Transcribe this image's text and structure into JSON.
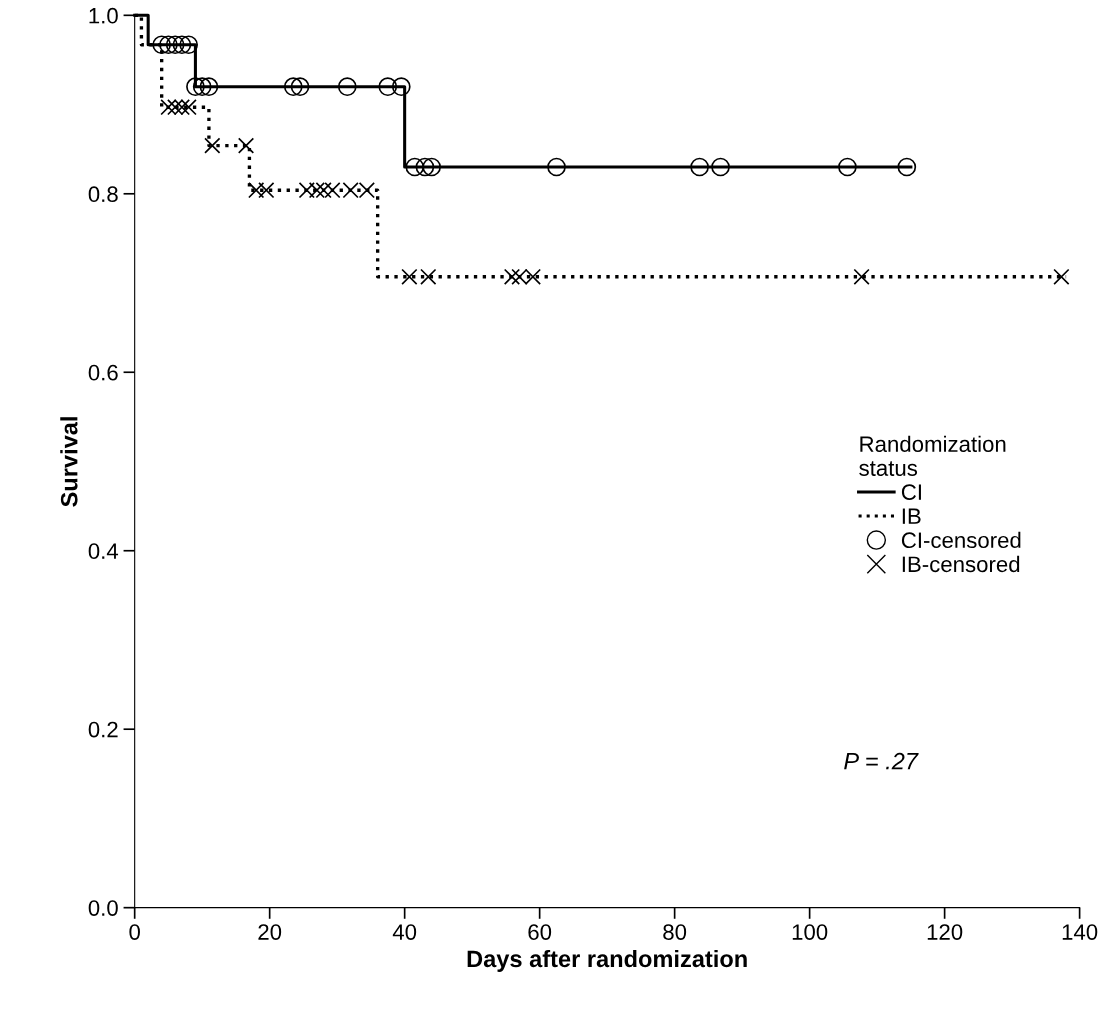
{
  "chart_data": {
    "type": "step",
    "xlabel": "Days after randomization",
    "ylabel": "Survival",
    "legend_title": "Randomization\nstatus",
    "legend": "right",
    "grid": false,
    "xlim": [
      0,
      140
    ],
    "xticks": [
      0,
      20,
      40,
      60,
      80,
      100,
      120,
      140
    ],
    "ylim": [
      0,
      1
    ],
    "yticks": [
      {
        "value": 0,
        "label": "0.0"
      },
      {
        "value": 0.2,
        "label": "0.2"
      },
      {
        "value": 0.4,
        "label": "0.4"
      },
      {
        "value": 0.6,
        "label": "0.6"
      },
      {
        "value": 0.8,
        "label": "0.8"
      },
      {
        "value": 1,
        "label": "1.0"
      }
    ],
    "series": [
      {
        "name": "CI",
        "color": "#000000",
        "line_style": "solid",
        "marker": "none",
        "x": [
          0,
          2,
          9,
          40,
          115
        ],
        "values": [
          1,
          0.967,
          0.92,
          0.83,
          0.83
        ]
      },
      {
        "name": "IB",
        "color": "#000000",
        "line_style": "dotted",
        "marker": "none",
        "x": [
          0,
          1,
          4,
          11,
          17,
          36,
          138
        ],
        "values": [
          1,
          0.967,
          0.897,
          0.854,
          0.804,
          0.707,
          0.707
        ]
      },
      {
        "name": "CI-censored",
        "type": "scatter",
        "color": "#000000",
        "marker": "circle",
        "x": [
          4,
          5,
          6,
          7,
          8,
          9,
          10,
          11,
          23.5,
          24.5,
          31.5,
          37.5,
          39.5,
          41.5,
          43,
          44,
          62.5,
          83.7,
          86.8,
          105.6,
          114.4
        ],
        "values": [
          0.967,
          0.967,
          0.967,
          0.967,
          0.967,
          0.92,
          0.92,
          0.92,
          0.92,
          0.92,
          0.92,
          0.92,
          0.92,
          0.83,
          0.83,
          0.83,
          0.83,
          0.83,
          0.83,
          0.83,
          0.83
        ]
      },
      {
        "name": "IB-censored",
        "type": "scatter",
        "color": "#000000",
        "marker": "cross",
        "x": [
          5,
          6,
          7,
          8,
          11.5,
          16.5,
          18,
          19.5,
          25.5,
          27,
          28,
          29.3,
          32,
          34.4,
          40.7,
          43.5,
          55.9,
          57,
          59,
          107.7,
          137.3
        ],
        "values": [
          0.897,
          0.897,
          0.897,
          0.897,
          0.854,
          0.854,
          0.804,
          0.804,
          0.804,
          0.804,
          0.804,
          0.804,
          0.804,
          0.804,
          0.707,
          0.707,
          0.707,
          0.707,
          0.707,
          0.707,
          0.707
        ]
      }
    ],
    "annotations": [
      "P = .27"
    ]
  }
}
